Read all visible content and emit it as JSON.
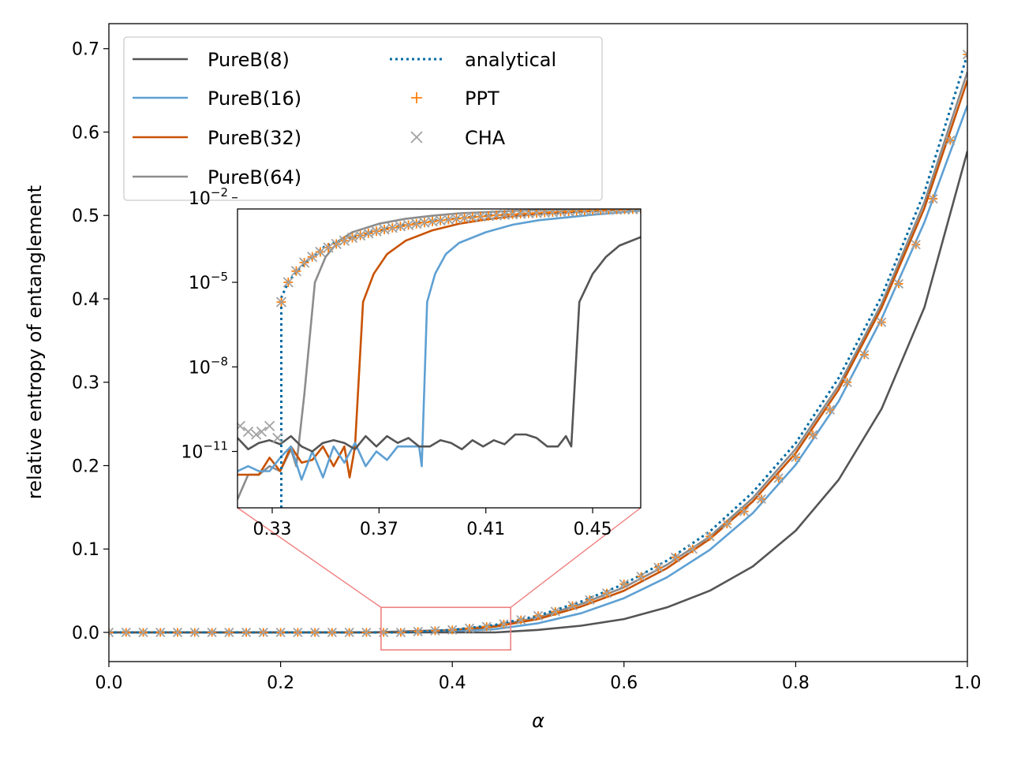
{
  "chart_data": [
    {
      "panel": "main",
      "type": "line",
      "title": "",
      "xlabel": "α",
      "ylabel": "relative entropy of entanglement",
      "xlim": [
        0.0,
        1.0
      ],
      "ylim": [
        -0.035,
        0.73
      ],
      "xticks": [
        0.0,
        0.2,
        0.4,
        0.6,
        0.8,
        1.0
      ],
      "xtick_labels": [
        "0.0",
        "0.2",
        "0.4",
        "0.6",
        "0.8",
        "1.0"
      ],
      "yticks": [
        0.0,
        0.1,
        0.2,
        0.3,
        0.4,
        0.5,
        0.6,
        0.7
      ],
      "ytick_labels": [
        "0.0",
        "0.1",
        "0.2",
        "0.3",
        "0.4",
        "0.5",
        "0.6",
        "0.7"
      ],
      "grid": false,
      "legend_position": "top-left",
      "legend_columns": 2,
      "zoom_box": {
        "x": [
          0.317,
          0.468
        ],
        "y": [
          -0.021,
          0.03
        ]
      },
      "series": [
        {
          "name": "PureB(8)",
          "kind": "line",
          "color": "#555555",
          "x": [
            0.0,
            0.3,
            0.45,
            0.5,
            0.55,
            0.6,
            0.65,
            0.7,
            0.75,
            0.8,
            0.85,
            0.9,
            0.95,
            1.0
          ],
          "y": [
            0.0,
            0.0,
            0.0,
            0.003,
            0.008,
            0.016,
            0.03,
            0.05,
            0.079,
            0.122,
            0.183,
            0.268,
            0.39,
            0.577
          ]
        },
        {
          "name": "PureB(16)",
          "kind": "line",
          "color": "#5ea0d3",
          "x": [
            0.0,
            0.3,
            0.4,
            0.45,
            0.5,
            0.55,
            0.6,
            0.65,
            0.7,
            0.75,
            0.8,
            0.85,
            0.9,
            0.95,
            1.0
          ],
          "y": [
            0.0,
            0.0,
            0.001,
            0.004,
            0.011,
            0.023,
            0.041,
            0.066,
            0.099,
            0.143,
            0.201,
            0.277,
            0.376,
            0.492,
            0.632
          ]
        },
        {
          "name": "PureB(32)",
          "kind": "line",
          "color": "#c85200",
          "x": [
            0.0,
            0.3,
            0.4,
            0.45,
            0.5,
            0.55,
            0.6,
            0.65,
            0.7,
            0.75,
            0.8,
            0.85,
            0.9,
            0.95,
            1.0
          ],
          "y": [
            0.0,
            0.0,
            0.002,
            0.007,
            0.016,
            0.031,
            0.05,
            0.077,
            0.112,
            0.157,
            0.215,
            0.291,
            0.389,
            0.509,
            0.662
          ]
        },
        {
          "name": "PureB(64)",
          "kind": "line",
          "color": "#8c8c8c",
          "x": [
            0.0,
            0.3,
            0.4,
            0.45,
            0.5,
            0.55,
            0.6,
            0.65,
            0.7,
            0.75,
            0.8,
            0.85,
            0.9,
            0.95,
            1.0
          ],
          "y": [
            0.0,
            0.0,
            0.003,
            0.008,
            0.018,
            0.034,
            0.054,
            0.081,
            0.115,
            0.161,
            0.22,
            0.296,
            0.394,
            0.516,
            0.672
          ]
        },
        {
          "name": "analytical",
          "kind": "dotted",
          "color": "#006ba4",
          "x": [
            0.0,
            0.333,
            0.35,
            0.4,
            0.45,
            0.5,
            0.55,
            0.6,
            0.65,
            0.7,
            0.75,
            0.8,
            0.85,
            0.9,
            0.95,
            1.0
          ],
          "y": [
            0.0,
            0.0,
            0.0003,
            0.003,
            0.009,
            0.02,
            0.037,
            0.058,
            0.086,
            0.121,
            0.168,
            0.227,
            0.305,
            0.403,
            0.528,
            0.693
          ]
        },
        {
          "name": "PPT",
          "kind": "marker-plus",
          "color": "#ff800e",
          "x": [
            0.0,
            0.02,
            0.04,
            0.06,
            0.08,
            0.1,
            0.12,
            0.14,
            0.16,
            0.18,
            0.2,
            0.22,
            0.24,
            0.26,
            0.28,
            0.3,
            0.32,
            0.34,
            0.36,
            0.38,
            0.4,
            0.42,
            0.44,
            0.46,
            0.48,
            0.5,
            0.52,
            0.54,
            0.56,
            0.58,
            0.6,
            0.62,
            0.64,
            0.66,
            0.68,
            0.7,
            0.72,
            0.74,
            0.76,
            0.78,
            0.8,
            0.82,
            0.84,
            0.86,
            0.88,
            0.9,
            0.92,
            0.94,
            0.96,
            0.98,
            1.0
          ],
          "y": [
            0.0,
            0.0,
            0.0,
            0.0,
            0.0,
            0.0,
            0.0,
            0.0,
            0.0,
            0.0,
            0.0,
            0.0,
            0.0,
            0.0,
            0.0,
            0.0,
            0.0,
            0.0,
            0.001,
            0.002,
            0.003,
            0.005,
            0.007,
            0.01,
            0.015,
            0.02,
            0.025,
            0.032,
            0.039,
            0.047,
            0.058,
            0.067,
            0.078,
            0.09,
            0.1,
            0.115,
            0.13,
            0.145,
            0.16,
            0.185,
            0.21,
            0.237,
            0.267,
            0.3,
            0.333,
            0.372,
            0.418,
            0.465,
            0.52,
            0.59,
            0.693
          ]
        },
        {
          "name": "CHA",
          "kind": "marker-x",
          "color": "#a2a2a2",
          "x": [
            0.0,
            0.02,
            0.04,
            0.06,
            0.08,
            0.1,
            0.12,
            0.14,
            0.16,
            0.18,
            0.2,
            0.22,
            0.24,
            0.26,
            0.28,
            0.3,
            0.32,
            0.34,
            0.36,
            0.38,
            0.4,
            0.42,
            0.44,
            0.46,
            0.48,
            0.5,
            0.52,
            0.54,
            0.56,
            0.58,
            0.6,
            0.62,
            0.64,
            0.66,
            0.68,
            0.7,
            0.72,
            0.74,
            0.76,
            0.78,
            0.8,
            0.82,
            0.84,
            0.86,
            0.88,
            0.9,
            0.92,
            0.94,
            0.96,
            0.98,
            1.0
          ],
          "y": [
            0.0,
            0.0,
            0.0,
            0.0,
            0.0,
            0.0,
            0.0,
            0.0,
            0.0,
            0.0,
            0.0,
            0.0,
            0.0,
            0.0,
            0.0,
            0.0,
            0.0,
            0.0,
            0.001,
            0.002,
            0.003,
            0.005,
            0.007,
            0.01,
            0.015,
            0.02,
            0.025,
            0.032,
            0.039,
            0.047,
            0.058,
            0.067,
            0.078,
            0.09,
            0.1,
            0.115,
            0.13,
            0.145,
            0.16,
            0.185,
            0.21,
            0.237,
            0.267,
            0.3,
            0.333,
            0.372,
            0.418,
            0.465,
            0.52,
            0.59,
            0.693
          ]
        }
      ]
    },
    {
      "panel": "inset",
      "type": "line",
      "y_scale": "log",
      "xlim": [
        0.317,
        0.468
      ],
      "ylim": [
        1e-13,
        0.004
      ],
      "xticks": [
        0.33,
        0.37,
        0.41,
        0.45
      ],
      "xtick_labels": [
        "0.33",
        "0.37",
        "0.41",
        "0.45"
      ],
      "yticks": [
        1e-11,
        1e-08,
        1e-05,
        0.01
      ],
      "ytick_labels": [
        "10",
        "10",
        "10",
        "10"
      ],
      "ytick_exponents": [
        "−11",
        "−8",
        "−5",
        "−2"
      ],
      "grid": false,
      "series": [
        {
          "name": "PureB(8)",
          "kind": "line",
          "color": "#555555",
          "x": [
            0.317,
            0.321,
            0.325,
            0.329,
            0.333,
            0.337,
            0.341,
            0.345,
            0.349,
            0.353,
            0.357,
            0.361,
            0.365,
            0.369,
            0.373,
            0.377,
            0.381,
            0.385,
            0.389,
            0.393,
            0.397,
            0.401,
            0.405,
            0.409,
            0.413,
            0.417,
            0.421,
            0.425,
            0.429,
            0.433,
            0.437,
            0.44,
            0.442,
            0.445,
            0.45,
            0.455,
            0.46,
            0.468
          ],
          "y": [
            3e-11,
            1.2e-11,
            2e-11,
            2.5e-11,
            1.8e-11,
            3.5e-11,
            1.5e-11,
            1e-11,
            2e-11,
            2.5e-11,
            2e-11,
            1.2e-11,
            3.5e-11,
            1.5e-11,
            3.5e-11,
            2e-11,
            3e-11,
            1.5e-11,
            1.5e-11,
            2.5e-11,
            2e-11,
            1.2e-11,
            2.5e-11,
            1.5e-11,
            2.5e-11,
            1.8e-11,
            4e-11,
            4e-11,
            3e-11,
            1.5e-11,
            1.5e-11,
            3.5e-11,
            1.5e-11,
            2e-06,
            2e-05,
            8e-05,
            0.0002,
            0.0004
          ]
        },
        {
          "name": "PureB(16)",
          "kind": "line",
          "color": "#5ea0d3",
          "x": [
            0.317,
            0.321,
            0.325,
            0.329,
            0.333,
            0.337,
            0.341,
            0.345,
            0.349,
            0.353,
            0.357,
            0.361,
            0.365,
            0.369,
            0.373,
            0.377,
            0.381,
            0.385,
            0.386,
            0.388,
            0.391,
            0.395,
            0.4,
            0.41,
            0.42,
            0.43,
            0.44,
            0.45,
            0.46,
            0.468
          ],
          "y": [
            2e-12,
            3e-12,
            2e-12,
            2e-12,
            6e-12,
            1.5e-11,
            1e-12,
            1e-11,
            1.2e-12,
            1.5e-11,
            4e-12,
            2e-11,
            3e-12,
            1e-11,
            5e-12,
            1.5e-11,
            1.5e-11,
            1.5e-11,
            3e-12,
            2e-06,
            2e-05,
            0.0001,
            0.00025,
            0.0006,
            0.0011,
            0.0016,
            0.002,
            0.0025,
            0.003,
            0.0035
          ]
        },
        {
          "name": "PureB(32)",
          "kind": "line",
          "color": "#c85200",
          "x": [
            0.317,
            0.321,
            0.325,
            0.329,
            0.333,
            0.337,
            0.341,
            0.345,
            0.349,
            0.353,
            0.357,
            0.359,
            0.361,
            0.364,
            0.368,
            0.373,
            0.38,
            0.39,
            0.4,
            0.41,
            0.42,
            0.43,
            0.44,
            0.45,
            0.46,
            0.468
          ],
          "y": [
            1.5e-12,
            1.5e-12,
            1.5e-12,
            6e-12,
            2e-12,
            1.5e-11,
            4e-12,
            5e-12,
            1.5e-11,
            3e-12,
            1.5e-11,
            1.2e-12,
            1.5e-11,
            2e-06,
            2e-05,
            0.0001,
            0.0003,
            0.0007,
            0.0012,
            0.0017,
            0.0022,
            0.0027,
            0.003,
            0.0034,
            0.0037,
            0.004
          ]
        },
        {
          "name": "PureB(64)",
          "kind": "line",
          "color": "#8c8c8c",
          "x": [
            0.317,
            0.321,
            0.325,
            0.329,
            0.333,
            0.337,
            0.339,
            0.342,
            0.346,
            0.35,
            0.355,
            0.36,
            0.37,
            0.38,
            0.39,
            0.4,
            0.41,
            0.42,
            0.43,
            0.44,
            0.45,
            0.46,
            0.468
          ],
          "y": [
            2e-13,
            1.5e-12,
            1.5e-12,
            3e-12,
            2e-12,
            1.2e-11,
            3e-12,
            1e-09,
            1e-05,
            8e-05,
            0.0003,
            0.0006,
            0.0012,
            0.0018,
            0.0023,
            0.0028,
            0.0031,
            0.0034,
            0.0036,
            0.0038,
            0.004,
            0.004,
            0.004
          ]
        },
        {
          "name": "analytical",
          "kind": "dotted",
          "color": "#006ba4",
          "x": [
            0.3334,
            0.3334,
            0.3335,
            0.336,
            0.34,
            0.345,
            0.35,
            0.36,
            0.37,
            0.38,
            0.39,
            0.4,
            0.41,
            0.42,
            0.43,
            0.44,
            0.45,
            0.46,
            0.468
          ],
          "y": [
            1e-13,
            2e-06,
            3e-06,
            1e-05,
            3e-05,
            8e-05,
            0.0002,
            0.0004,
            0.0007,
            0.0011,
            0.0015,
            0.0019,
            0.0023,
            0.0026,
            0.0029,
            0.0032,
            0.0035,
            0.0038,
            0.004
          ]
        },
        {
          "name": "PPT",
          "kind": "marker-plus",
          "color": "#ff800e",
          "x": [
            0.3334,
            0.336,
            0.339,
            0.342,
            0.345,
            0.348,
            0.351,
            0.354,
            0.357,
            0.36,
            0.363,
            0.366,
            0.369,
            0.372,
            0.375,
            0.378,
            0.381,
            0.384,
            0.387,
            0.39,
            0.393,
            0.396,
            0.399,
            0.402,
            0.405,
            0.408,
            0.411,
            0.414,
            0.417,
            0.42,
            0.423,
            0.426,
            0.429,
            0.432,
            0.435,
            0.438,
            0.441,
            0.444,
            0.447,
            0.45,
            0.453,
            0.456,
            0.459,
            0.462,
            0.465,
            0.468
          ],
          "y": [
            2e-06,
            1e-05,
            2.5e-05,
            5e-05,
            8e-05,
            0.00012,
            0.00017,
            0.00023,
            0.0003,
            0.00038,
            0.00046,
            0.00055,
            0.00065,
            0.00075,
            0.00086,
            0.00097,
            0.00108,
            0.0012,
            0.00132,
            0.00144,
            0.00156,
            0.00168,
            0.0018,
            0.00192,
            0.00204,
            0.00216,
            0.00228,
            0.0024,
            0.0025,
            0.0026,
            0.0027,
            0.0028,
            0.0029,
            0.003,
            0.0031,
            0.0032,
            0.0033,
            0.0034,
            0.0035,
            0.0036,
            0.0037,
            0.00375,
            0.0038,
            0.00385,
            0.0039,
            0.004
          ]
        },
        {
          "name": "CHA",
          "kind": "marker-x",
          "color": "#a2a2a2",
          "x": [
            0.318,
            0.321,
            0.324,
            0.326,
            0.329,
            0.332,
            0.3334,
            0.336,
            0.339,
            0.342,
            0.345,
            0.348,
            0.351,
            0.354,
            0.357,
            0.36,
            0.363,
            0.366,
            0.369,
            0.372,
            0.375,
            0.378,
            0.381,
            0.384,
            0.387,
            0.39,
            0.393,
            0.396,
            0.399,
            0.402,
            0.405,
            0.408,
            0.411,
            0.414,
            0.417,
            0.42,
            0.423,
            0.426,
            0.429,
            0.432,
            0.435,
            0.438,
            0.441,
            0.444,
            0.447,
            0.45,
            0.453,
            0.456,
            0.459,
            0.462,
            0.465,
            0.468
          ],
          "y": [
            8e-11,
            5e-11,
            4e-11,
            5e-11,
            8e-11,
            3e-11,
            2e-06,
            1e-05,
            2.5e-05,
            5e-05,
            8e-05,
            0.00012,
            0.00017,
            0.00023,
            0.0003,
            0.00038,
            0.00046,
            0.00055,
            0.00065,
            0.00075,
            0.00086,
            0.00097,
            0.00108,
            0.0012,
            0.00132,
            0.00144,
            0.00156,
            0.00168,
            0.0018,
            0.00192,
            0.00204,
            0.00216,
            0.00228,
            0.0024,
            0.0025,
            0.0026,
            0.0027,
            0.0028,
            0.0029,
            0.003,
            0.0031,
            0.0032,
            0.0033,
            0.0034,
            0.0035,
            0.0036,
            0.0037,
            0.00375,
            0.0038,
            0.00385,
            0.0039,
            0.004
          ]
        }
      ]
    }
  ]
}
